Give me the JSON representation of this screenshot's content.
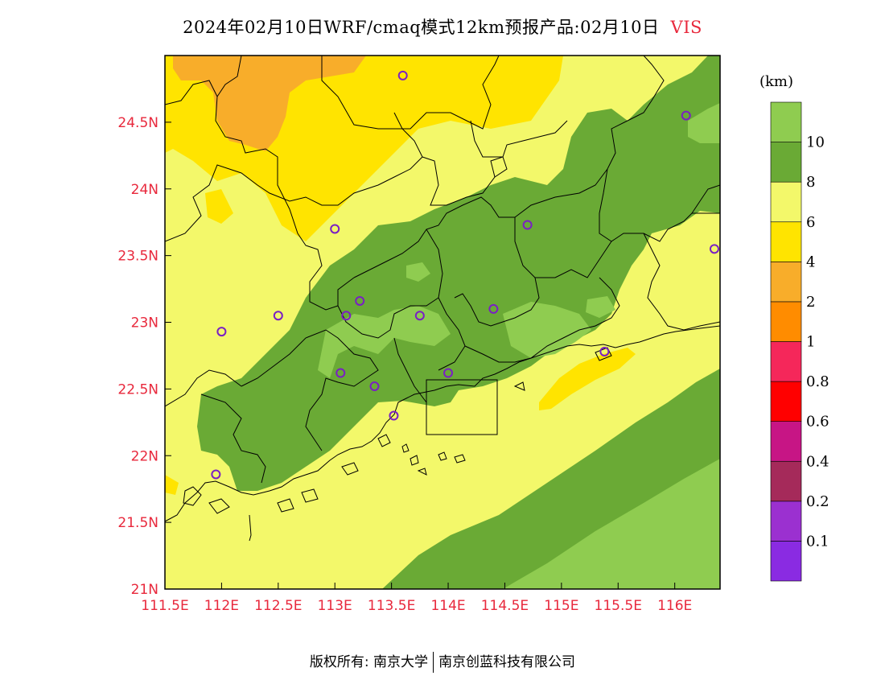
{
  "title": {
    "main": "2024年02月10日WRF/cmaq模式12km预报产品:02月10日",
    "variable": "VIS"
  },
  "map": {
    "lon_ticks": [
      "111.5E",
      "112E",
      "112.5E",
      "113E",
      "113.5E",
      "114E",
      "114.5E",
      "115E",
      "115.5E",
      "116E"
    ],
    "lat_ticks": [
      "21N",
      "21.5N",
      "22N",
      "22.5N",
      "23N",
      "23.5N",
      "24N",
      "24.5N"
    ],
    "lon_range": [
      111.5,
      116.4
    ],
    "lat_range": [
      21.0,
      25.0
    ],
    "stations": [
      {
        "lon": 113.6,
        "lat": 24.85
      },
      {
        "lon": 116.1,
        "lat": 24.55
      },
      {
        "lon": 113.0,
        "lat": 23.7
      },
      {
        "lon": 114.7,
        "lat": 23.73
      },
      {
        "lon": 116.35,
        "lat": 23.55
      },
      {
        "lon": 113.22,
        "lat": 23.16
      },
      {
        "lon": 113.1,
        "lat": 23.05
      },
      {
        "lon": 112.5,
        "lat": 23.05
      },
      {
        "lon": 112.0,
        "lat": 22.93
      },
      {
        "lon": 113.75,
        "lat": 23.05
      },
      {
        "lon": 114.4,
        "lat": 23.1
      },
      {
        "lon": 115.38,
        "lat": 22.78
      },
      {
        "lon": 113.05,
        "lat": 22.62
      },
      {
        "lon": 114.0,
        "lat": 22.62
      },
      {
        "lon": 113.35,
        "lat": 22.52
      },
      {
        "lon": 113.52,
        "lat": 22.3
      },
      {
        "lon": 111.95,
        "lat": 21.86
      }
    ]
  },
  "legend": {
    "unit": "(km)",
    "bins": [
      {
        "color": "#8a2be2",
        "label": "0.1"
      },
      {
        "color": "#9b30d0",
        "label": "0.2"
      },
      {
        "color": "#a52a5a",
        "label": "0.4"
      },
      {
        "color": "#c71585",
        "label": "0.6"
      },
      {
        "color": "#ff0000",
        "label": "0.8"
      },
      {
        "color": "#f5275a",
        "label": "1"
      },
      {
        "color": "#ff8c00",
        "label": "2"
      },
      {
        "color": "#f8ad2a",
        "label": "4"
      },
      {
        "color": "#ffe400",
        "label": "6"
      },
      {
        "color": "#f3f86a",
        "label": "8"
      },
      {
        "color": "#6aaa35",
        "label": "10"
      },
      {
        "color": "#8fcc50",
        "label": ""
      }
    ]
  },
  "footer": {
    "left": "版权所有: 南京大学",
    "right": "南京创蓝科技有限公司"
  }
}
